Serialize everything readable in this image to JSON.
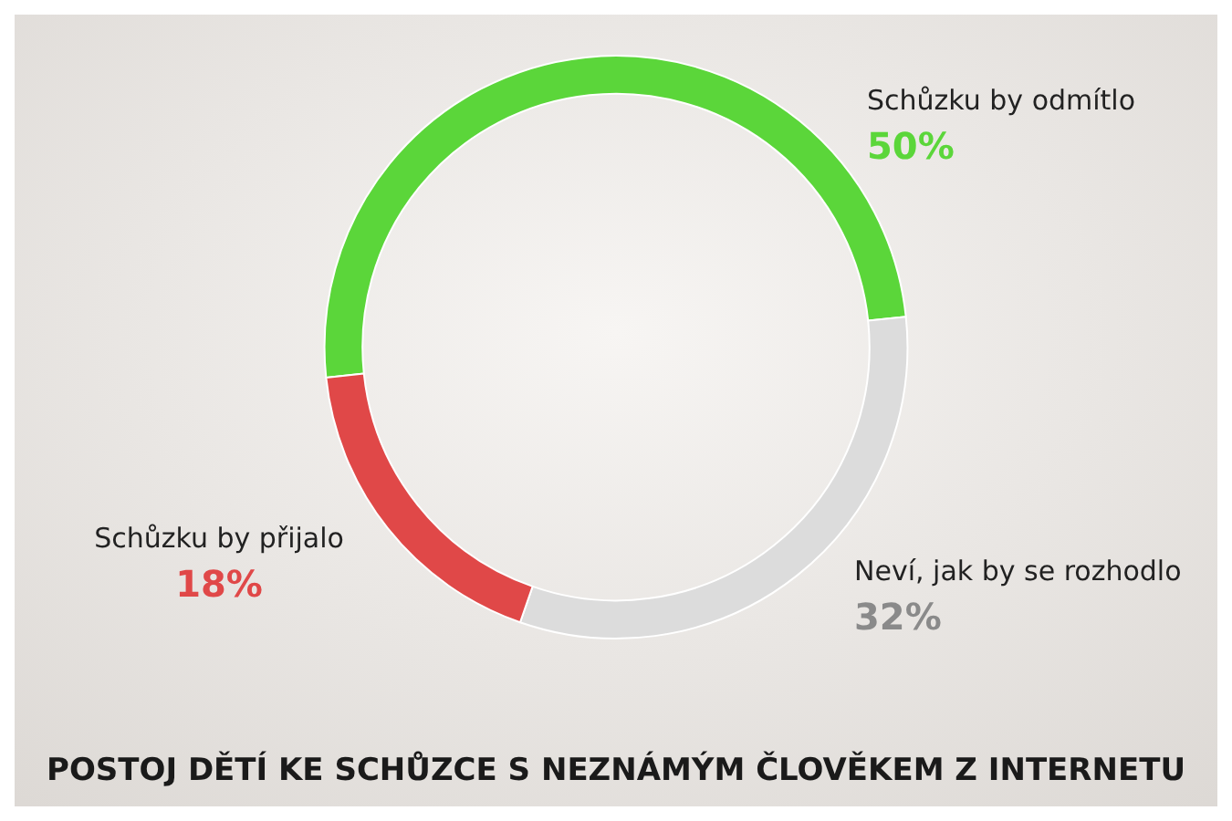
{
  "chart_data": {
    "type": "donut",
    "title": "POSTOJ DĚTÍ KE SCHŮZCE S NEZNÁMÝM ČLOVĚKEM Z INTERNETU",
    "categories": [
      "Schůzku by odmítlo",
      "Neví, jak by se rozhodlo",
      "Schůzku by přijalo"
    ],
    "values": [
      50,
      32,
      18
    ],
    "colors": [
      "#5bd63a",
      "#dcdcdc",
      "#e04848"
    ],
    "value_labels": [
      "50%",
      "32%",
      "18%"
    ],
    "legend": false
  }
}
